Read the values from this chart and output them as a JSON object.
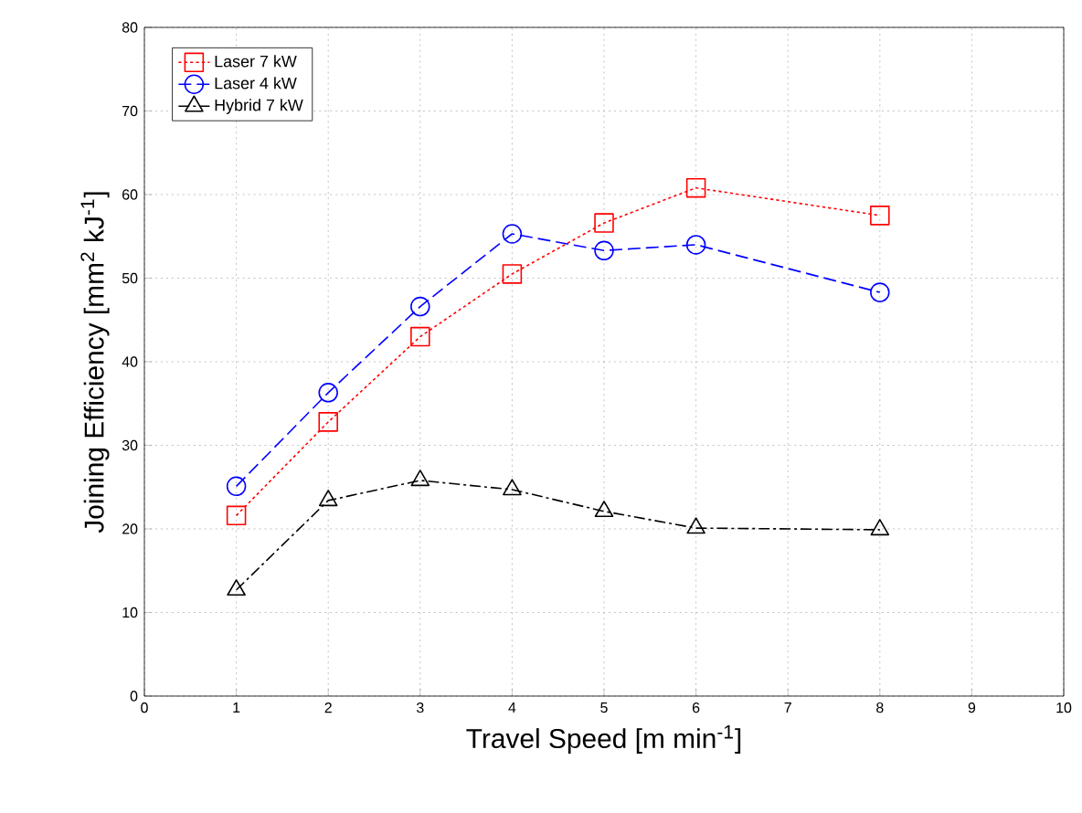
{
  "chart_data": {
    "type": "line",
    "xlabel": "Travel Speed [m min$^{-1}$]",
    "ylabel": "Joining Efficiency [mm$^{2}$ kJ$^{-1}$]",
    "x": [
      1,
      2,
      3,
      4,
      5,
      6,
      8
    ],
    "series": [
      {
        "name": "Laser 7 kW",
        "color": "#ff0000",
        "marker": "square",
        "line_style": "dotted",
        "values": [
          21.6,
          32.8,
          43,
          50.5,
          56.6,
          60.8,
          57.5
        ]
      },
      {
        "name": "Laser 4 kW",
        "color": "#0000ff",
        "marker": "circle",
        "line_style": "dashed",
        "values": [
          25.1,
          36.3,
          46.6,
          55.3,
          53.3,
          54,
          48.3
        ]
      },
      {
        "name": "Hybrid 7 kW",
        "color": "#000000",
        "marker": "triangle",
        "line_style": "dashdot",
        "values": [
          12.7,
          23.4,
          25.8,
          24.7,
          22.1,
          20.1,
          19.9
        ]
      }
    ],
    "xlim": [
      0,
      10
    ],
    "ylim": [
      0,
      80
    ],
    "xticks": [
      0,
      1,
      2,
      3,
      4,
      5,
      6,
      7,
      8,
      9,
      10
    ],
    "yticks": [
      0,
      10,
      20,
      30,
      40,
      50,
      60,
      70,
      80
    ],
    "grid": true,
    "legend": "top left"
  }
}
